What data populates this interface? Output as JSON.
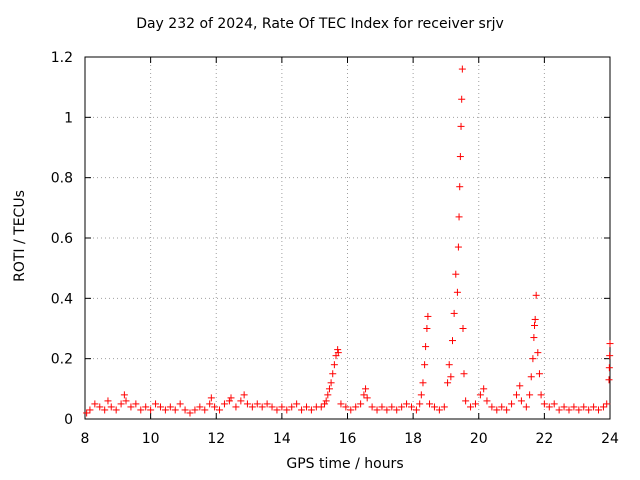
{
  "chart_data": {
    "type": "scatter",
    "title": "Day 232 of 2024, Rate Of TEC Index for receiver srjv",
    "xlabel": "GPS time / hours",
    "ylabel": "ROTI / TECUs",
    "xlim": [
      8,
      24
    ],
    "ylim": [
      0,
      1.2
    ],
    "xticks": [
      8,
      10,
      12,
      14,
      16,
      18,
      20,
      22,
      24
    ],
    "yticks": [
      0,
      0.2,
      0.4,
      0.6,
      0.8,
      1,
      1.2
    ],
    "xtick_labels": [
      "8",
      "10",
      "12",
      "14",
      "16",
      "18",
      "20",
      "22",
      "24"
    ],
    "ytick_labels": [
      "0",
      "0.2",
      "0.4",
      "0.6",
      "0.8",
      "1",
      "1.2"
    ],
    "grid": true,
    "marker": "+",
    "color": "#ff0000",
    "series": [
      {
        "name": "ROTI",
        "points": [
          [
            8.05,
            0.02
          ],
          [
            8.15,
            0.03
          ],
          [
            8.3,
            0.05
          ],
          [
            8.45,
            0.04
          ],
          [
            8.6,
            0.03
          ],
          [
            8.7,
            0.06
          ],
          [
            8.8,
            0.04
          ],
          [
            8.95,
            0.03
          ],
          [
            9.1,
            0.05
          ],
          [
            9.2,
            0.08
          ],
          [
            9.25,
            0.06
          ],
          [
            9.4,
            0.04
          ],
          [
            9.55,
            0.05
          ],
          [
            9.7,
            0.03
          ],
          [
            9.85,
            0.04
          ],
          [
            10.0,
            0.03
          ],
          [
            10.15,
            0.05
          ],
          [
            10.3,
            0.04
          ],
          [
            10.45,
            0.03
          ],
          [
            10.6,
            0.04
          ],
          [
            10.75,
            0.03
          ],
          [
            10.9,
            0.05
          ],
          [
            11.05,
            0.03
          ],
          [
            11.2,
            0.02
          ],
          [
            11.35,
            0.03
          ],
          [
            11.5,
            0.04
          ],
          [
            11.65,
            0.03
          ],
          [
            11.8,
            0.05
          ],
          [
            11.85,
            0.07
          ],
          [
            11.95,
            0.04
          ],
          [
            12.1,
            0.03
          ],
          [
            12.25,
            0.05
          ],
          [
            12.4,
            0.06
          ],
          [
            12.45,
            0.07
          ],
          [
            12.6,
            0.04
          ],
          [
            12.75,
            0.06
          ],
          [
            12.85,
            0.08
          ],
          [
            12.95,
            0.05
          ],
          [
            13.1,
            0.04
          ],
          [
            13.25,
            0.05
          ],
          [
            13.4,
            0.04
          ],
          [
            13.55,
            0.05
          ],
          [
            13.7,
            0.04
          ],
          [
            13.85,
            0.03
          ],
          [
            14.0,
            0.04
          ],
          [
            14.15,
            0.03
          ],
          [
            14.3,
            0.04
          ],
          [
            14.45,
            0.05
          ],
          [
            14.6,
            0.03
          ],
          [
            14.75,
            0.04
          ],
          [
            14.9,
            0.03
          ],
          [
            15.05,
            0.04
          ],
          [
            15.2,
            0.04
          ],
          [
            15.3,
            0.05
          ],
          [
            15.35,
            0.06
          ],
          [
            15.4,
            0.08
          ],
          [
            15.45,
            0.1
          ],
          [
            15.5,
            0.12
          ],
          [
            15.55,
            0.15
          ],
          [
            15.6,
            0.18
          ],
          [
            15.65,
            0.21
          ],
          [
            15.7,
            0.23
          ],
          [
            15.72,
            0.22
          ],
          [
            15.8,
            0.05
          ],
          [
            15.95,
            0.04
          ],
          [
            16.1,
            0.03
          ],
          [
            16.25,
            0.04
          ],
          [
            16.4,
            0.05
          ],
          [
            16.5,
            0.08
          ],
          [
            16.55,
            0.1
          ],
          [
            16.6,
            0.07
          ],
          [
            16.75,
            0.04
          ],
          [
            16.9,
            0.03
          ],
          [
            17.05,
            0.04
          ],
          [
            17.2,
            0.03
          ],
          [
            17.35,
            0.04
          ],
          [
            17.5,
            0.03
          ],
          [
            17.65,
            0.04
          ],
          [
            17.8,
            0.05
          ],
          [
            17.95,
            0.04
          ],
          [
            18.1,
            0.03
          ],
          [
            18.2,
            0.05
          ],
          [
            18.25,
            0.08
          ],
          [
            18.3,
            0.12
          ],
          [
            18.35,
            0.18
          ],
          [
            18.38,
            0.24
          ],
          [
            18.42,
            0.3
          ],
          [
            18.45,
            0.34
          ],
          [
            18.5,
            0.05
          ],
          [
            18.65,
            0.04
          ],
          [
            18.8,
            0.03
          ],
          [
            18.95,
            0.04
          ],
          [
            19.05,
            0.12
          ],
          [
            19.1,
            0.18
          ],
          [
            19.15,
            0.14
          ],
          [
            19.2,
            0.26
          ],
          [
            19.25,
            0.35
          ],
          [
            19.3,
            0.48
          ],
          [
            19.35,
            0.42
          ],
          [
            19.38,
            0.57
          ],
          [
            19.4,
            0.67
          ],
          [
            19.42,
            0.77
          ],
          [
            19.44,
            0.87
          ],
          [
            19.46,
            0.97
          ],
          [
            19.48,
            1.06
          ],
          [
            19.5,
            1.16
          ],
          [
            19.52,
            0.3
          ],
          [
            19.55,
            0.15
          ],
          [
            19.6,
            0.06
          ],
          [
            19.75,
            0.04
          ],
          [
            19.9,
            0.05
          ],
          [
            20.05,
            0.08
          ],
          [
            20.15,
            0.1
          ],
          [
            20.25,
            0.06
          ],
          [
            20.4,
            0.04
          ],
          [
            20.55,
            0.03
          ],
          [
            20.7,
            0.04
          ],
          [
            20.85,
            0.03
          ],
          [
            21.0,
            0.05
          ],
          [
            21.15,
            0.08
          ],
          [
            21.25,
            0.11
          ],
          [
            21.3,
            0.06
          ],
          [
            21.45,
            0.04
          ],
          [
            21.55,
            0.08
          ],
          [
            21.6,
            0.14
          ],
          [
            21.65,
            0.2
          ],
          [
            21.68,
            0.27
          ],
          [
            21.7,
            0.31
          ],
          [
            21.72,
            0.33
          ],
          [
            21.75,
            0.41
          ],
          [
            21.8,
            0.22
          ],
          [
            21.85,
            0.15
          ],
          [
            21.9,
            0.08
          ],
          [
            22.0,
            0.05
          ],
          [
            22.15,
            0.04
          ],
          [
            22.3,
            0.05
          ],
          [
            22.45,
            0.03
          ],
          [
            22.6,
            0.04
          ],
          [
            22.75,
            0.03
          ],
          [
            22.9,
            0.04
          ],
          [
            23.05,
            0.03
          ],
          [
            23.2,
            0.04
          ],
          [
            23.35,
            0.03
          ],
          [
            23.5,
            0.04
          ],
          [
            23.65,
            0.03
          ],
          [
            23.8,
            0.04
          ],
          [
            23.9,
            0.05
          ],
          [
            23.97,
            0.13
          ],
          [
            23.98,
            0.17
          ],
          [
            23.99,
            0.21
          ],
          [
            24.0,
            0.25
          ]
        ]
      }
    ]
  }
}
